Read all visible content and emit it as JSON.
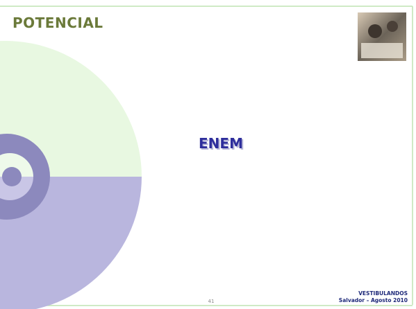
{
  "header": {
    "logo": "POTENCIAL"
  },
  "slide": {
    "title": "ENEM",
    "page_number": "41"
  },
  "footer": {
    "line1": "VESTIBULANDOS",
    "line2": "Salvador – Agosto 2010"
  }
}
